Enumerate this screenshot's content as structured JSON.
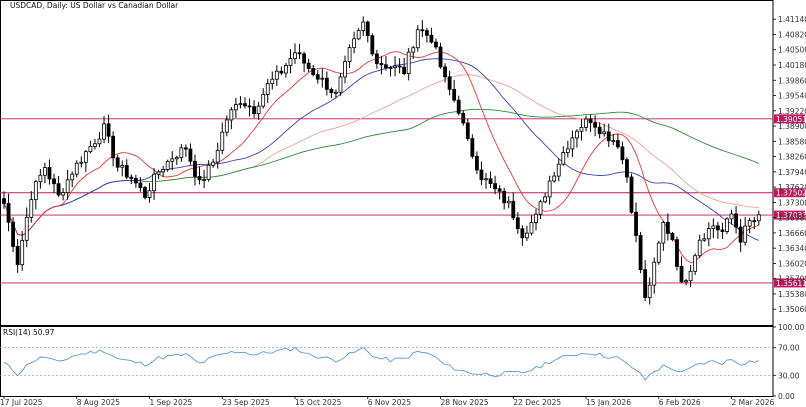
{
  "header": {
    "symbol_title": "USDCAD, Daily:  US Dollar vs Canadian Dollar"
  },
  "rsi": {
    "label": "RSI(14) 50.97",
    "axis_labels": [
      "100.00",
      "70.00",
      "30.00",
      "0.00"
    ]
  },
  "colors": {
    "candle_up": "#ffffff",
    "candle_down": "#000000",
    "ma_fast": "#e8383a",
    "ma_mid": "#3b3fb8",
    "ma_slow_light": "#f0a09a",
    "ma_long": "#2e8b3a",
    "level_line": "#c2185b",
    "rsi_line": "#5b9bd5"
  },
  "chart_data": [
    {
      "type": "candlestick",
      "title": "USDCAD, Daily:  US Dollar vs Canadian Dollar",
      "ylim": [
        1.3475,
        1.4148
      ],
      "y_ticks": [
        "1.41140",
        "1.40820",
        "1.40500",
        "1.40180",
        "1.39860",
        "1.39540",
        "1.39220",
        "1.38900",
        "1.38580",
        "1.38260",
        "1.37940",
        "1.37620",
        "1.37300",
        "1.36980",
        "1.36660",
        "1.36340",
        "1.36020",
        "1.35700",
        "1.35380",
        "1.35060"
      ],
      "y_tick_values": [
        1.4114,
        1.4082,
        1.405,
        1.4018,
        1.3986,
        1.3954,
        1.3922,
        1.389,
        1.3858,
        1.3826,
        1.3794,
        1.3762,
        1.373,
        1.3698,
        1.3666,
        1.3634,
        1.3602,
        1.357,
        1.3538,
        1.3506
      ],
      "x_ticks": [
        {
          "label": "17 Jul 2025",
          "index": 0
        },
        {
          "label": "8 Aug 2025",
          "index": 16
        },
        {
          "label": "1 Sep 2025",
          "index": 32
        },
        {
          "label": "23 Sep 2025",
          "index": 48
        },
        {
          "label": "15 Oct 2025",
          "index": 64
        },
        {
          "label": "6 Nov 2025",
          "index": 80
        },
        {
          "label": "28 Nov 2025",
          "index": 96
        },
        {
          "label": "22 Dec 2025",
          "index": 112
        },
        {
          "label": "15 Jan 2026",
          "index": 128
        },
        {
          "label": "6 Feb 2026",
          "index": 144
        },
        {
          "label": "2 Mar 2026",
          "index": 160
        }
      ],
      "levels": [
        {
          "label": "1.39051",
          "value": 1.39051
        },
        {
          "label": "1.37502",
          "value": 1.37502
        },
        {
          "label": "1.37033",
          "value": 1.37033
        },
        {
          "label": "1.35611",
          "value": 1.35611
        }
      ],
      "waypoints": [
        [
          0,
          1.3728
        ],
        [
          3,
          1.3605
        ],
        [
          6,
          1.3745
        ],
        [
          9,
          1.3805
        ],
        [
          12,
          1.3742
        ],
        [
          15,
          1.3795
        ],
        [
          18,
          1.3835
        ],
        [
          22,
          1.3885
        ],
        [
          25,
          1.3805
        ],
        [
          28,
          1.3782
        ],
        [
          31,
          1.3745
        ],
        [
          34,
          1.3795
        ],
        [
          37,
          1.3825
        ],
        [
          40,
          1.3845
        ],
        [
          43,
          1.3768
        ],
        [
          46,
          1.3815
        ],
        [
          49,
          1.3905
        ],
        [
          52,
          1.3945
        ],
        [
          55,
          1.3925
        ],
        [
          58,
          1.3975
        ],
        [
          61,
          1.4005
        ],
        [
          64,
          1.4045
        ],
        [
          67,
          1.4012
        ],
        [
          70,
          1.3985
        ],
        [
          73,
          1.3955
        ],
        [
          76,
          1.4045
        ],
        [
          79,
          1.4105
        ],
        [
          82,
          1.4025
        ],
        [
          85,
          1.4015
        ],
        [
          88,
          1.4005
        ],
        [
          91,
          1.4095
        ],
        [
          94,
          1.4075
        ],
        [
          97,
          1.3985
        ],
        [
          100,
          1.3925
        ],
        [
          102,
          1.3855
        ],
        [
          105,
          1.3785
        ],
        [
          108,
          1.3755
        ],
        [
          111,
          1.3725
        ],
        [
          114,
          1.3665
        ],
        [
          117,
          1.3698
        ],
        [
          120,
          1.3775
        ],
        [
          123,
          1.3835
        ],
        [
          126,
          1.3885
        ],
        [
          129,
          1.3905
        ],
        [
          132,
          1.3875
        ],
        [
          135,
          1.3855
        ],
        [
          137,
          1.3785
        ],
        [
          139,
          1.3655
        ],
        [
          141,
          1.3525
        ],
        [
          143,
          1.3595
        ],
        [
          145,
          1.3685
        ],
        [
          147,
          1.3655
        ],
        [
          149,
          1.3555
        ],
        [
          151,
          1.3595
        ],
        [
          153,
          1.3655
        ],
        [
          156,
          1.3682
        ],
        [
          158,
          1.3668
        ],
        [
          160,
          1.3705
        ],
        [
          162,
          1.3655
        ],
        [
          164,
          1.3688
        ],
        [
          166,
          1.3695
        ]
      ],
      "count": 167,
      "seed": 7
    },
    {
      "type": "line",
      "title": "RSI(14) 50.97",
      "ylim": [
        0,
        100
      ],
      "y_ticks": [
        "100.00",
        "70.00",
        "30.00",
        "0.00"
      ],
      "waypoints": [
        [
          0,
          48
        ],
        [
          3,
          32
        ],
        [
          6,
          50
        ],
        [
          9,
          57
        ],
        [
          12,
          48
        ],
        [
          15,
          58
        ],
        [
          18,
          62
        ],
        [
          22,
          66
        ],
        [
          25,
          54
        ],
        [
          28,
          50
        ],
        [
          31,
          46
        ],
        [
          34,
          55
        ],
        [
          37,
          58
        ],
        [
          40,
          60
        ],
        [
          43,
          47
        ],
        [
          46,
          56
        ],
        [
          49,
          62
        ],
        [
          52,
          65
        ],
        [
          55,
          60
        ],
        [
          58,
          63
        ],
        [
          61,
          66
        ],
        [
          64,
          69
        ],
        [
          67,
          60
        ],
        [
          70,
          56
        ],
        [
          73,
          52
        ],
        [
          76,
          60
        ],
        [
          79,
          69
        ],
        [
          82,
          55
        ],
        [
          85,
          52
        ],
        [
          88,
          54
        ],
        [
          91,
          64
        ],
        [
          94,
          60
        ],
        [
          97,
          45
        ],
        [
          100,
          38
        ],
        [
          102,
          34
        ],
        [
          105,
          32
        ],
        [
          108,
          31
        ],
        [
          111,
          33
        ],
        [
          114,
          34
        ],
        [
          117,
          40
        ],
        [
          120,
          50
        ],
        [
          123,
          56
        ],
        [
          126,
          61
        ],
        [
          129,
          63
        ],
        [
          132,
          58
        ],
        [
          135,
          55
        ],
        [
          137,
          46
        ],
        [
          139,
          38
        ],
        [
          141,
          24
        ],
        [
          143,
          36
        ],
        [
          145,
          43
        ],
        [
          147,
          40
        ],
        [
          149,
          33
        ],
        [
          151,
          40
        ],
        [
          153,
          47
        ],
        [
          156,
          50
        ],
        [
          158,
          48
        ],
        [
          160,
          53
        ],
        [
          162,
          47
        ],
        [
          164,
          50
        ],
        [
          166,
          51
        ]
      ]
    }
  ]
}
